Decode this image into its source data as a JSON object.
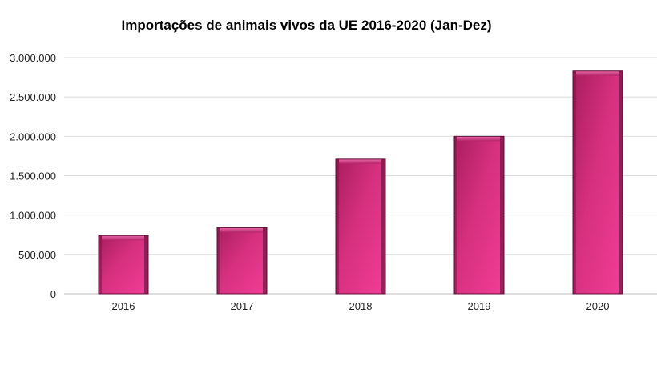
{
  "chart_data": {
    "type": "bar",
    "title": "Importações de animais vivos da UE 2016-2020 (Jan-Dez)",
    "categories": [
      "2016",
      "2017",
      "2018",
      "2019",
      "2020"
    ],
    "values": [
      740000,
      840000,
      1710000,
      2000000,
      2830000
    ],
    "ylim": [
      0,
      3000000
    ],
    "yticks": [
      0,
      500000,
      1000000,
      1500000,
      2000000,
      2500000,
      3000000
    ],
    "ytick_labels": [
      "0",
      "500.000",
      "1.000.000",
      "1.500.000",
      "2.000.000",
      "2.500.000",
      "3.000.000"
    ],
    "xlabel": "",
    "ylabel": "",
    "grid": true,
    "legend": "none",
    "bar_color": "#d63384"
  }
}
